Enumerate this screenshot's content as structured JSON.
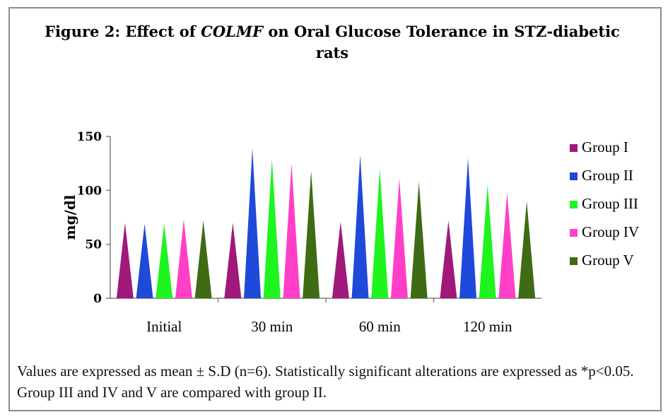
{
  "figure": {
    "title_prefix": "Figure 2: Effect of ",
    "title_emphasis": "COLMF",
    "title_suffix": " on Oral Glucose Tolerance in STZ-diabetic rats",
    "footnote": "Values are expressed as mean ± S.D (n=6). Statistically significant alterations are expressed as *p<0.05. Group III and IV and V are compared with group II."
  },
  "chart_data": {
    "type": "bar",
    "bar_shape": "cone",
    "title": "Figure 2: Effect of COLMF on Oral Glucose Tolerance in STZ-diabetic rats",
    "xlabel": "",
    "ylabel": "mg/dl",
    "ylim": [
      0,
      150
    ],
    "yticks": [
      0,
      50,
      100,
      150
    ],
    "grid": false,
    "legend_position": "right",
    "categories": [
      "Initial",
      "30 min",
      "60 min",
      "120 min"
    ],
    "series": [
      {
        "name": "Group I",
        "color": "#a0187a",
        "values": [
          70,
          70,
          71,
          72
        ]
      },
      {
        "name": "Group II",
        "color": "#1f49d8",
        "values": [
          69,
          139,
          133,
          130
        ]
      },
      {
        "name": "Group III",
        "color": "#1ef41e",
        "values": [
          69,
          129,
          120,
          105
        ]
      },
      {
        "name": "Group IV",
        "color": "#ff3fc8",
        "values": [
          73,
          125,
          111,
          98
        ]
      },
      {
        "name": "Group V",
        "color": "#3f6b15",
        "values": [
          72,
          118,
          108,
          90
        ]
      }
    ]
  }
}
